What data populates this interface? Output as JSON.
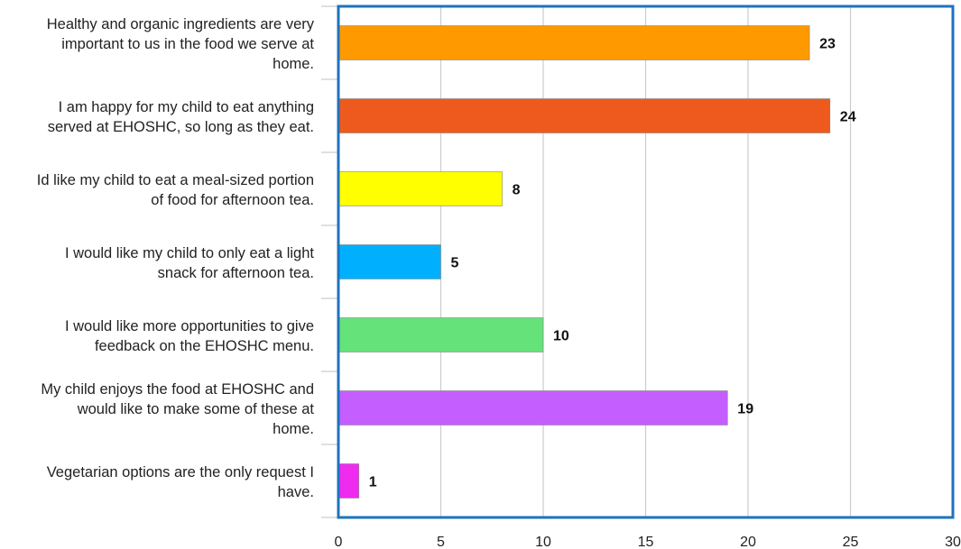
{
  "chart_data": {
    "type": "bar",
    "orientation": "horizontal",
    "categories": [
      [
        "Healthy and organic ingredients are very",
        "important to us in the food we serve at",
        "home."
      ],
      [
        "I am happy for my child to eat anything",
        "served at EHOSHC, so long as they eat."
      ],
      [
        "Id like my child to eat a meal-sized portion",
        "of food for afternoon tea."
      ],
      [
        "I would like my child to only eat a light",
        "snack for afternoon tea."
      ],
      [
        "I would like more opportunities to give",
        "feedback on the EHOSHC menu."
      ],
      [
        "My child enjoys the food at EHOSHC and",
        "would like to make some of these at",
        "home."
      ],
      [
        "Vegetarian options are the only request I",
        "have."
      ]
    ],
    "values": [
      23,
      24,
      8,
      5,
      10,
      19,
      1
    ],
    "colors": [
      "#FF9900",
      "#EE5A1E",
      "#FFFF00",
      "#00B0FF",
      "#66E27A",
      "#C45EFF",
      "#F02BF0"
    ],
    "x_ticks": [
      "0",
      "5",
      "10",
      "15",
      "20",
      "25",
      "30"
    ],
    "xlim": [
      0,
      30
    ],
    "grid": true,
    "legend": "none",
    "title": "",
    "xlabel": "",
    "ylabel": "",
    "frame_color": "#1E73BE"
  }
}
